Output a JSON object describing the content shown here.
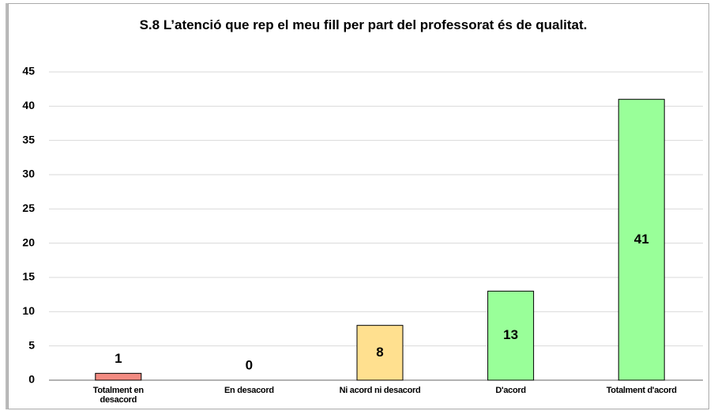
{
  "chart_data": {
    "type": "bar",
    "title": "S.8 L’atenció que rep el meu fill per part del professorat és de qualitat.",
    "categories": [
      "Totalment en desacord",
      "En desacord",
      "Ni acord ni desacord",
      "D'acord",
      "Totalment d'acord"
    ],
    "values": [
      1,
      0,
      8,
      13,
      41
    ],
    "colors": [
      "#f28b82",
      "#f28b82",
      "#ffe08f",
      "#99ff99",
      "#99ff99"
    ],
    "ylim": [
      0,
      45
    ],
    "yticks": [
      0,
      5,
      10,
      15,
      20,
      25,
      30,
      35,
      40,
      45
    ],
    "grid": true
  }
}
